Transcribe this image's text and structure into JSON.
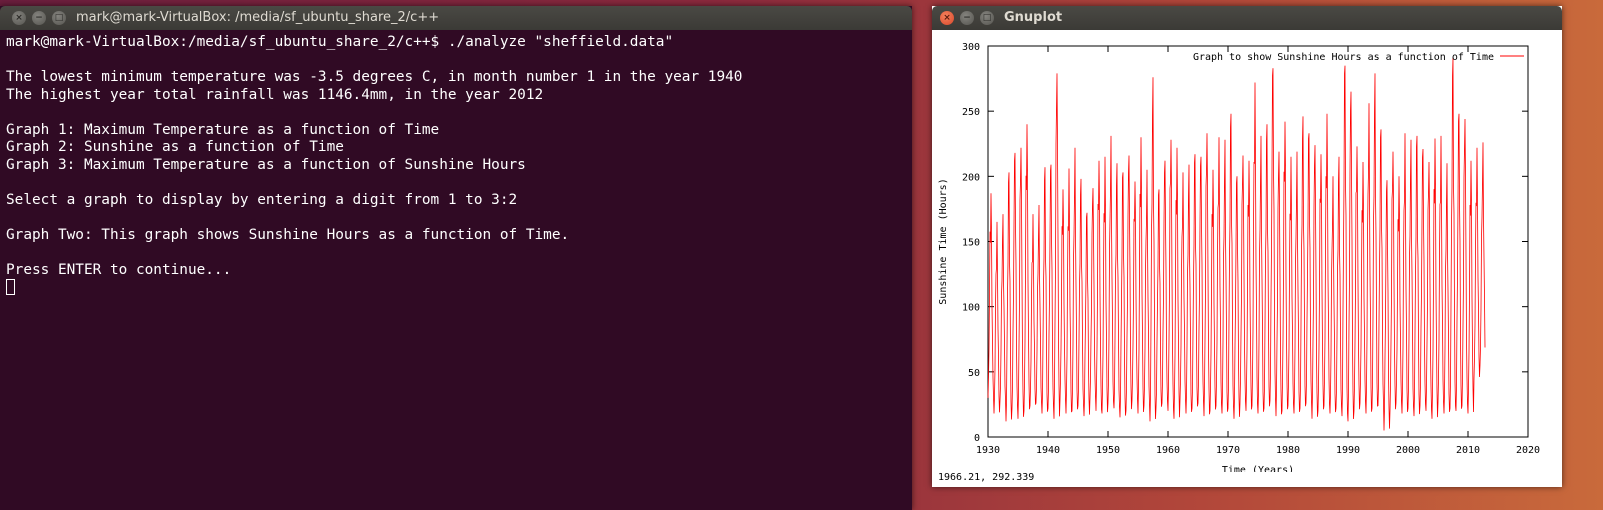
{
  "terminal": {
    "title": "mark@mark-VirtualBox: /media/sf_ubuntu_share_2/c++",
    "lines": [
      "mark@mark-VirtualBox:/media/sf_ubuntu_share_2/c++$ ./analyze \"sheffield.data\"",
      "",
      "The lowest minimum temperature was -3.5 degrees C, in month number 1 in the year 1940",
      "The highest year total rainfall was 1146.4mm, in the year 2012",
      "",
      "Graph 1: Maximum Temperature as a function of Time",
      "Graph 2: Sunshine as a function of Time",
      "Graph 3: Maximum Temperature as a function of Sunshine Hours",
      "",
      "Select a graph to display by entering a digit from 1 to 3:2",
      "",
      "Graph Two: This graph shows Sunshine Hours as a function of Time.",
      "",
      "Press ENTER to continue..."
    ]
  },
  "gnuplot": {
    "title": "Gnuplot",
    "coordinate_readout": "1966.21,  292.339"
  },
  "colors": {
    "series": "#ff0000",
    "terminal_bg": "#300a24"
  },
  "chart_data": {
    "type": "line",
    "title": "",
    "xlabel": "Time (Years)",
    "ylabel": "Sunshine Time (Hours)",
    "xlim": [
      1930,
      2020
    ],
    "ylim": [
      0,
      300
    ],
    "xticks": [
      1930,
      1940,
      1950,
      1960,
      1970,
      1980,
      1990,
      2000,
      2010,
      2020
    ],
    "yticks": [
      0,
      50,
      100,
      150,
      200,
      250,
      300
    ],
    "grid": false,
    "legend_position": "top-right",
    "series": [
      {
        "name": "Graph to show Sunshine Hours as a function of Time",
        "x_start": 1930,
        "x_end": 2012.9,
        "peaks": [
          187,
          165,
          171,
          203,
          218,
          222,
          240,
          171,
          178,
          207,
          209,
          279,
          190,
          206,
          222,
          198,
          172,
          191,
          212,
          215,
          231,
          210,
          203,
          216,
          196,
          230,
          205,
          276,
          190,
          212,
          228,
          222,
          203,
          209,
          217,
          215,
          233,
          205,
          230,
          228,
          248,
          200,
          216,
          212,
          272,
          231,
          240,
          283,
          219,
          242,
          215,
          219,
          246,
          233,
          224,
          217,
          248,
          200,
          215,
          285,
          265,
          223,
          211,
          256,
          279,
          236,
          197,
          219,
          200,
          233,
          228,
          231,
          221,
          211,
          229,
          231,
          210,
          291,
          248,
          244,
          212,
          222,
          226
        ],
        "troughs": [
          30,
          18,
          28,
          12,
          22,
          14,
          20,
          24,
          26,
          18,
          22,
          14,
          28,
          18,
          20,
          24,
          16,
          30,
          20,
          18,
          26,
          22,
          15,
          20,
          28,
          18,
          24,
          12,
          22,
          26,
          20,
          14,
          28,
          18,
          22,
          26,
          16,
          20,
          24,
          18,
          22,
          14,
          26,
          20,
          24,
          18,
          22,
          28,
          16,
          20,
          24,
          18,
          22,
          26,
          14,
          20,
          24,
          18,
          22,
          16,
          12,
          20,
          26,
          18,
          22,
          24,
          5,
          20,
          26,
          18,
          22,
          16,
          24,
          20,
          14,
          26,
          18,
          22,
          20,
          24,
          18,
          45,
          55
        ]
      }
    ]
  }
}
